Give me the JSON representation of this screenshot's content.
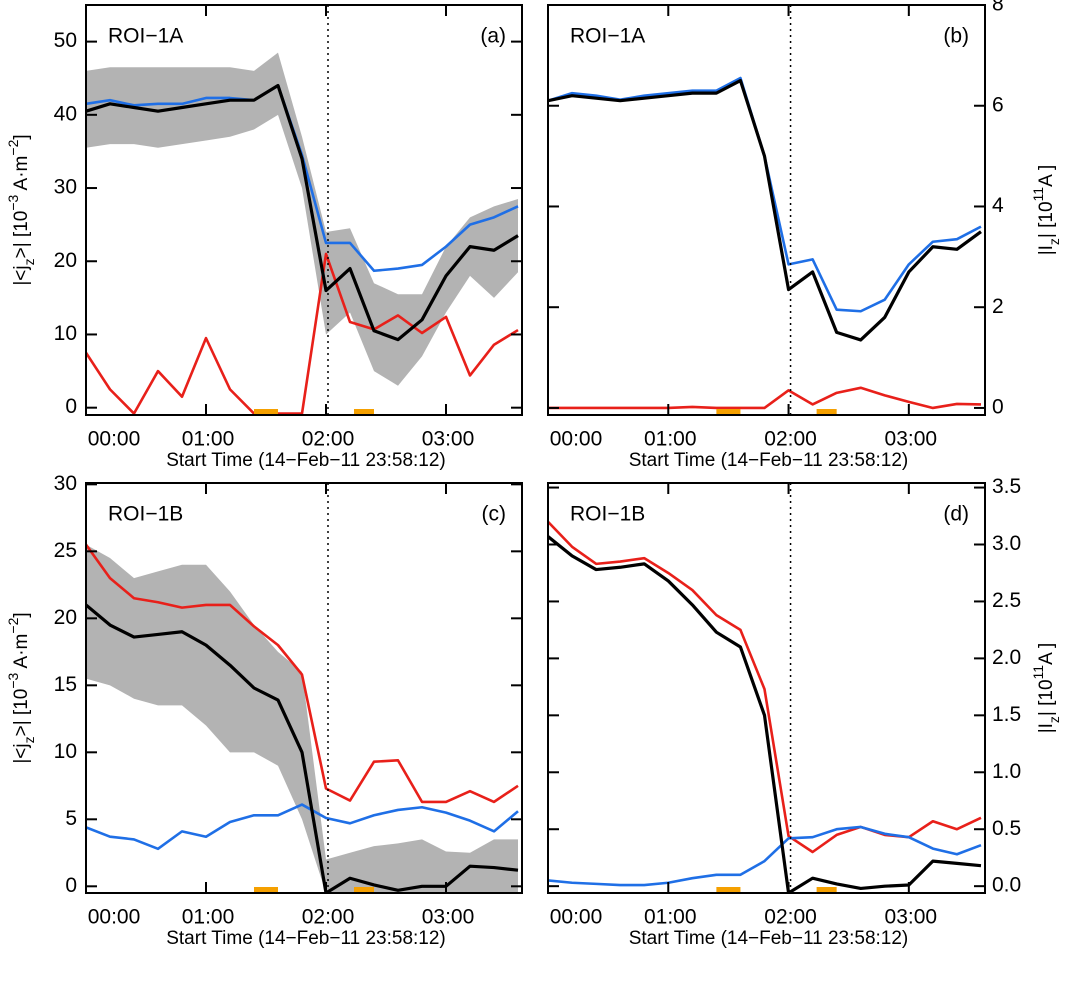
{
  "chart_data": [
    {
      "type": "line",
      "region": "ROI−1A",
      "panel": "(a)",
      "xlabel": "Start Time (14−Feb−11 23:58:12)",
      "ylabel": [
        {
          "text": "|<j"
        },
        {
          "text": "z",
          "script": "sub"
        },
        {
          "text": ">| [10"
        },
        {
          "text": "−3",
          "script": "super"
        },
        {
          "text": " A·m"
        },
        {
          "text": "−2",
          "script": "super"
        },
        {
          "text": "]"
        }
      ],
      "y_axis_side": "left",
      "x": [
        0,
        12,
        24,
        36,
        48,
        60,
        72,
        84,
        96,
        108,
        120,
        132,
        144,
        156,
        168,
        180,
        192,
        204,
        216
      ],
      "xlim": [
        0,
        218
      ],
      "xticks": [
        {
          "value": 0,
          "label": "00:00"
        },
        {
          "value": 60,
          "label": "01:00"
        },
        {
          "value": 120,
          "label": "02:00"
        },
        {
          "value": 180,
          "label": "03:00"
        }
      ],
      "ylim": [
        -1,
        55
      ],
      "yticks": [
        0,
        10,
        20,
        30,
        40,
        50
      ],
      "band": {
        "color": "#b3b3b3",
        "upper": [
          46,
          46.5,
          46.5,
          46.5,
          46.5,
          46.5,
          46.5,
          46,
          48.5,
          37,
          24,
          24.5,
          17,
          15.5,
          15.5,
          22,
          26,
          27.5,
          28.5
        ],
        "lower": [
          35.5,
          36,
          36,
          35.5,
          36,
          36.5,
          37,
          38,
          40,
          30,
          10,
          13,
          5,
          3,
          7,
          13,
          18,
          15,
          18.5
        ]
      },
      "series": [
        {
          "color": "#e8201a",
          "values": [
            7.5,
            2.5,
            -0.8,
            5,
            1.5,
            9.5,
            2.5,
            -0.8,
            -0.8,
            -0.8,
            21,
            11.7,
            10.7,
            12.6,
            10.2,
            12.4,
            4.4,
            8.6,
            10.6
          ]
        },
        {
          "color": "#1f6fe6",
          "values": [
            41.5,
            42,
            41.3,
            41.5,
            41.5,
            42.3,
            42.3,
            42,
            44,
            34.5,
            22.5,
            22.5,
            18.7,
            19,
            19.5,
            22,
            25,
            26,
            27.5
          ]
        },
        {
          "color": "#000000",
          "values": [
            40.5,
            41.5,
            41,
            40.5,
            41,
            41.5,
            42,
            42,
            44,
            34,
            16,
            19,
            10.5,
            9.3,
            12,
            18,
            22,
            21.5,
            23.5
          ]
        }
      ],
      "marker_time": 121,
      "highlight_intervals": [
        [
          84,
          96
        ],
        [
          134,
          144
        ]
      ],
      "highlight_color": "#f5a000"
    },
    {
      "type": "line",
      "region": "ROI−1A",
      "panel": "(b)",
      "xlabel": "Start Time (14−Feb−11 23:58:12)",
      "ylabel": [
        {
          "text": "|I"
        },
        {
          "text": "z",
          "script": "sub"
        },
        {
          "text": "| [10"
        },
        {
          "text": "11",
          "script": "super"
        },
        {
          "text": "A ]"
        }
      ],
      "y_axis_side": "right",
      "x": [
        0,
        12,
        24,
        36,
        48,
        60,
        72,
        84,
        96,
        108,
        120,
        132,
        144,
        156,
        168,
        180,
        192,
        204,
        216
      ],
      "xlim": [
        0,
        218
      ],
      "xticks": [
        {
          "value": 0,
          "label": "00:00"
        },
        {
          "value": 60,
          "label": "01:00"
        },
        {
          "value": 120,
          "label": "02:00"
        },
        {
          "value": 180,
          "label": "03:00"
        }
      ],
      "ylim": [
        -0.14,
        8
      ],
      "yticks": [
        0,
        2,
        4,
        6,
        8
      ],
      "series": [
        {
          "color": "#e8201a",
          "values": [
            0,
            0,
            0,
            0,
            0,
            0,
            0.02,
            0,
            0,
            0,
            0.35,
            0.07,
            0.3,
            0.4,
            0.25,
            0.12,
            0,
            0.08,
            0.07
          ]
        },
        {
          "color": "#1f6fe6",
          "values": [
            6.1,
            6.25,
            6.2,
            6.12,
            6.2,
            6.25,
            6.3,
            6.3,
            6.55,
            5.0,
            2.85,
            2.95,
            1.95,
            1.92,
            2.15,
            2.85,
            3.3,
            3.35,
            3.6
          ]
        },
        {
          "color": "#000000",
          "values": [
            6.1,
            6.2,
            6.15,
            6.1,
            6.15,
            6.2,
            6.25,
            6.25,
            6.5,
            5.0,
            2.35,
            2.7,
            1.5,
            1.35,
            1.8,
            2.7,
            3.2,
            3.15,
            3.5
          ]
        }
      ],
      "marker_time": 121,
      "highlight_intervals": [
        [
          84,
          96
        ],
        [
          134,
          144
        ]
      ],
      "highlight_color": "#f5a000"
    },
    {
      "type": "line",
      "region": "ROI−1B",
      "panel": "(c)",
      "xlabel": "Start Time (14−Feb−11 23:58:12)",
      "ylabel": [
        {
          "text": "|<j"
        },
        {
          "text": "z",
          "script": "sub"
        },
        {
          "text": ">| [10"
        },
        {
          "text": "−3",
          "script": "super"
        },
        {
          "text": " A·m"
        },
        {
          "text": "−2",
          "script": "super"
        },
        {
          "text": "]"
        }
      ],
      "y_axis_side": "left",
      "x": [
        0,
        12,
        24,
        36,
        48,
        60,
        72,
        84,
        96,
        108,
        120,
        132,
        144,
        156,
        168,
        180,
        192,
        204,
        216
      ],
      "xlim": [
        0,
        218
      ],
      "xticks": [
        {
          "value": 0,
          "label": "00:00"
        },
        {
          "value": 60,
          "label": "01:00"
        },
        {
          "value": 120,
          "label": "02:00"
        },
        {
          "value": 180,
          "label": "03:00"
        }
      ],
      "ylim": [
        -0.5,
        30.1
      ],
      "yticks": [
        0,
        5,
        10,
        15,
        20,
        25,
        30
      ],
      "band": {
        "color": "#b3b3b3",
        "upper": [
          25.5,
          24.5,
          23,
          23.5,
          24,
          24,
          22,
          19.5,
          17.5,
          16,
          2,
          2.5,
          3,
          3.2,
          3.5,
          2.6,
          2.5,
          3.5,
          3.5
        ],
        "lower": [
          15.5,
          15,
          14,
          13.5,
          13.5,
          12,
          10,
          10,
          9,
          5,
          -0.5,
          -0.5,
          -0.5,
          -0.5,
          -0.5,
          -0.5,
          -0.5,
          -0.5,
          -0.5
        ]
      },
      "series": [
        {
          "color": "#e8201a",
          "values": [
            25.5,
            23,
            21.5,
            21.2,
            20.8,
            21,
            21,
            19.4,
            18,
            15.8,
            7.3,
            6.4,
            9.3,
            9.4,
            6.3,
            6.3,
            7.1,
            6.3,
            7.5
          ]
        },
        {
          "color": "#1f6fe6",
          "values": [
            4.4,
            3.7,
            3.5,
            2.8,
            4.1,
            3.7,
            4.8,
            5.3,
            5.3,
            6.1,
            5.1,
            4.7,
            5.3,
            5.7,
            5.9,
            5.5,
            4.9,
            4.1,
            5.6
          ]
        },
        {
          "color": "#000000",
          "values": [
            21,
            19.5,
            18.6,
            18.8,
            19,
            18,
            16.5,
            14.8,
            13.9,
            10,
            -0.5,
            0.6,
            0.1,
            -0.3,
            0,
            0,
            1.5,
            1.4,
            1.2
          ]
        }
      ],
      "marker_time": 121,
      "highlight_intervals": [
        [
          84,
          96
        ],
        [
          134,
          144
        ]
      ],
      "highlight_color": "#f5a000"
    },
    {
      "type": "line",
      "region": "ROI−1B",
      "panel": "(d)",
      "xlabel": "Start Time (14−Feb−11 23:58:12)",
      "ylabel": [
        {
          "text": "|I"
        },
        {
          "text": "z",
          "script": "sub"
        },
        {
          "text": "| [10"
        },
        {
          "text": "11",
          "script": "super"
        },
        {
          "text": "A ]"
        }
      ],
      "y_axis_side": "right",
      "x": [
        0,
        12,
        24,
        36,
        48,
        60,
        72,
        84,
        96,
        108,
        120,
        132,
        144,
        156,
        168,
        180,
        192,
        204,
        216
      ],
      "xlim": [
        0,
        218
      ],
      "xticks": [
        {
          "value": 0,
          "label": "00:00"
        },
        {
          "value": 60,
          "label": "01:00"
        },
        {
          "value": 120,
          "label": "02:00"
        },
        {
          "value": 180,
          "label": "03:00"
        }
      ],
      "ylim": [
        -0.06,
        3.54
      ],
      "yticks": [
        {
          "value": 0,
          "label": "0.0"
        },
        {
          "value": 0.5,
          "label": "0.5"
        },
        {
          "value": 1,
          "label": "1.0"
        },
        {
          "value": 1.5,
          "label": "1.5"
        },
        {
          "value": 2,
          "label": "2.0"
        },
        {
          "value": 2.5,
          "label": "2.5"
        },
        {
          "value": 3,
          "label": "3.0"
        },
        {
          "value": 3.5,
          "label": "3.5"
        }
      ],
      "series": [
        {
          "color": "#e8201a",
          "values": [
            3.2,
            2.98,
            2.83,
            2.85,
            2.88,
            2.75,
            2.6,
            2.38,
            2.25,
            1.73,
            0.44,
            0.3,
            0.45,
            0.52,
            0.45,
            0.43,
            0.57,
            0.5,
            0.6
          ]
        },
        {
          "color": "#1f6fe6",
          "values": [
            0.05,
            0.03,
            0.02,
            0.01,
            0.01,
            0.03,
            0.07,
            0.1,
            0.1,
            0.22,
            0.42,
            0.43,
            0.5,
            0.52,
            0.46,
            0.43,
            0.33,
            0.28,
            0.36
          ]
        },
        {
          "color": "#000000",
          "values": [
            3.07,
            2.9,
            2.78,
            2.8,
            2.83,
            2.68,
            2.47,
            2.23,
            2.1,
            1.5,
            -0.06,
            0.07,
            0.02,
            -0.02,
            0,
            0.01,
            0.22,
            0.2,
            0.18
          ]
        }
      ],
      "marker_time": 121,
      "highlight_intervals": [
        [
          84,
          96
        ],
        [
          134,
          144
        ]
      ],
      "highlight_color": "#f5a000"
    }
  ]
}
